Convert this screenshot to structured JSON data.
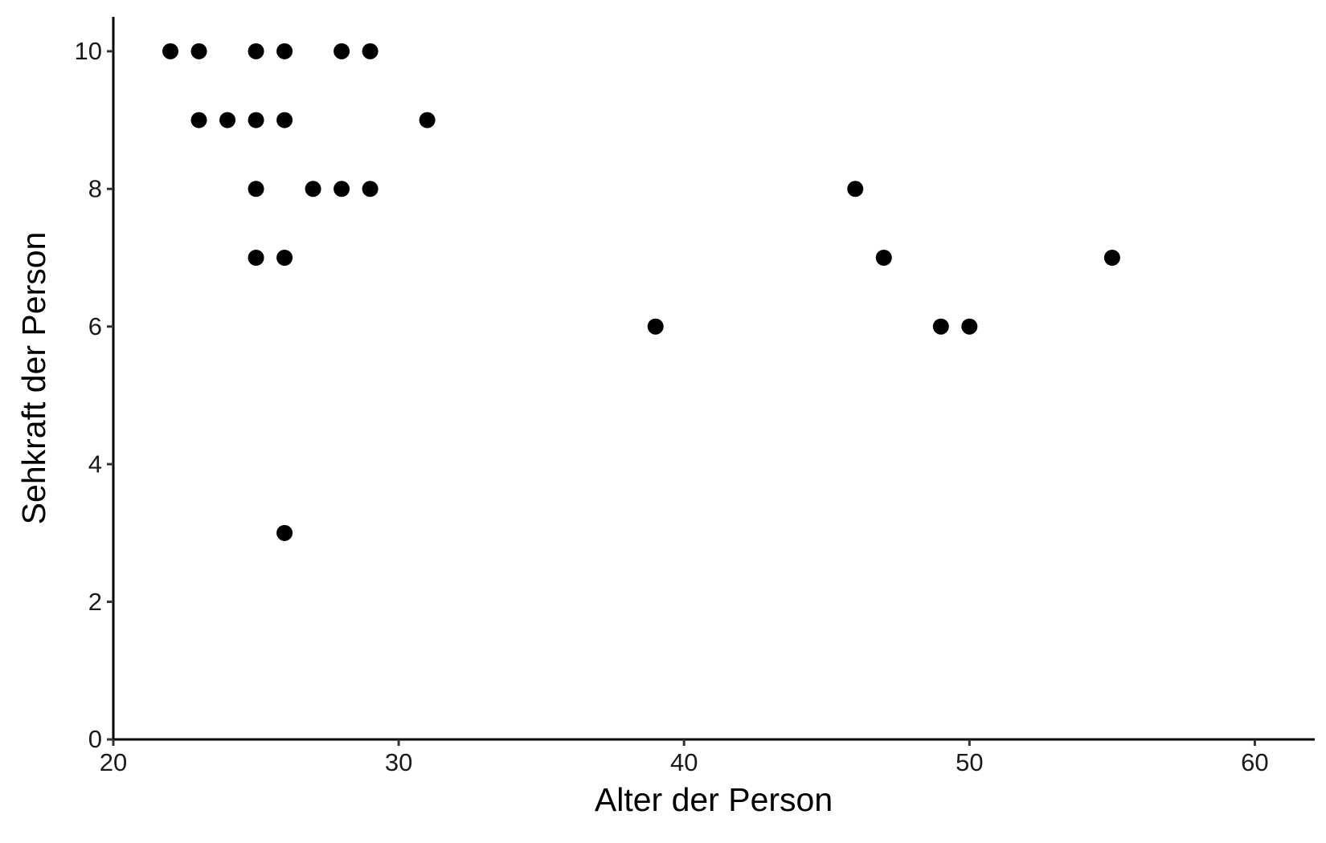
{
  "chart_data": {
    "type": "scatter",
    "x_label": "Alter der Person",
    "y_label": "Sehkraft der Person",
    "x": [
      22,
      23,
      25,
      26,
      28,
      29,
      23,
      24,
      25,
      26,
      31,
      25,
      27,
      28,
      29,
      46,
      25,
      26,
      47,
      55,
      39,
      49,
      50,
      26
    ],
    "series": [
      {
        "color": "#000000",
        "values": [
          10,
          10,
          10,
          10,
          10,
          10,
          9,
          9,
          9,
          9,
          9,
          8,
          8,
          8,
          8,
          8,
          7,
          7,
          7,
          7,
          6,
          6,
          6,
          3
        ]
      }
    ],
    "xlim": [
      20,
      62.1
    ],
    "xticks": [
      20,
      30,
      40,
      50,
      60
    ],
    "ylim": [
      0,
      10.5
    ],
    "yticks": [
      0,
      2,
      4,
      6,
      8,
      10
    ],
    "grid": false
  }
}
